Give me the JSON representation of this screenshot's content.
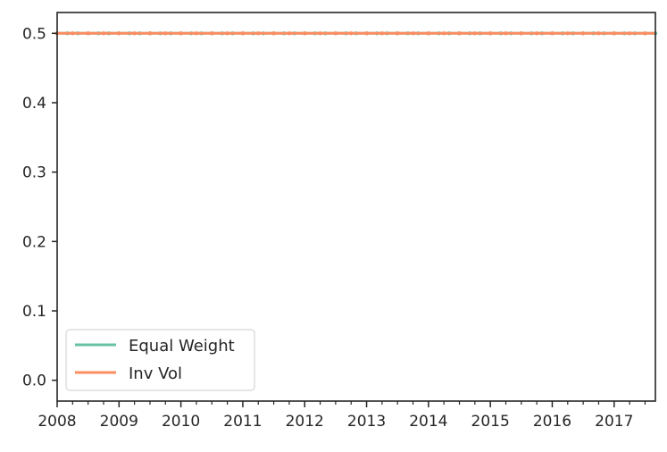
{
  "chart_data": {
    "type": "line",
    "title": "",
    "xlabel": "",
    "ylabel": "",
    "x_ticks": [
      "2008",
      "2009",
      "2010",
      "2011",
      "2012",
      "2013",
      "2014",
      "2015",
      "2016",
      "2017"
    ],
    "x_range": [
      "2008-01",
      "2017-09"
    ],
    "minor_ticks_per_year": 4,
    "y_ticks": [
      "0.0",
      "0.1",
      "0.2",
      "0.3",
      "0.4",
      "0.5"
    ],
    "ylim": [
      -0.03,
      0.53
    ],
    "grid": false,
    "legend_position": "lower-left",
    "series": [
      {
        "name": "Equal Weight",
        "color": "#66c2a5",
        "style": "solid with dot markers",
        "value": 0.5
      },
      {
        "name": "Inv Vol",
        "color": "#fc8d62",
        "style": "solid with dot markers",
        "value": 0.5
      }
    ]
  }
}
